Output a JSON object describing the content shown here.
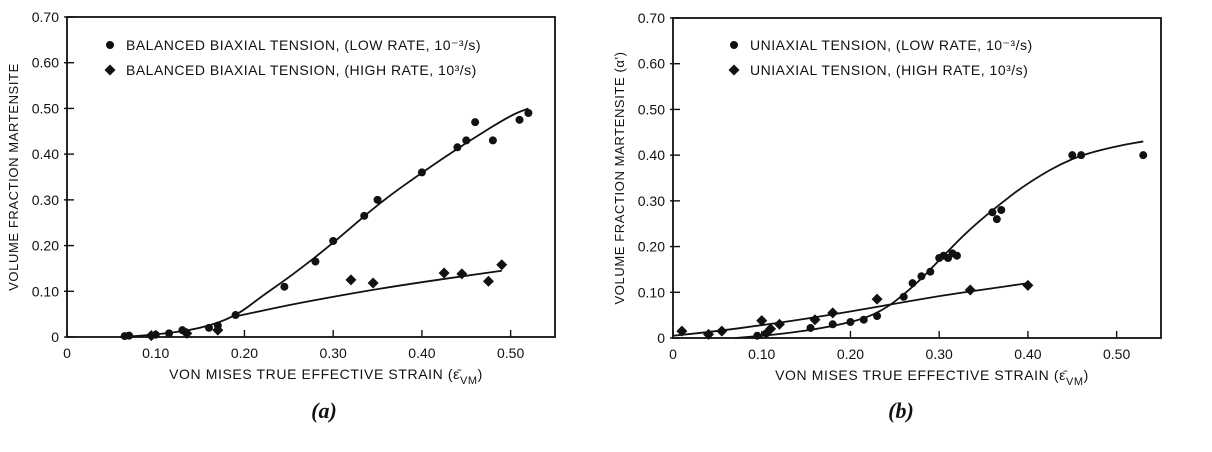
{
  "chart_data": [
    {
      "type": "scatter",
      "panel_caption": "(a)",
      "xlabel": "VON MISES TRUE EFFECTIVE STRAIN",
      "xlabel_symbol": "(ε̄",
      "xlabel_sub": "VM",
      "xlabel_close": ")",
      "ylabel": "VOLUME FRACTION MARTENSITE",
      "xlim": [
        0,
        0.55
      ],
      "ylim": [
        0,
        0.7
      ],
      "x_ticks": [
        0,
        0.1,
        0.2,
        0.3,
        0.4,
        0.5
      ],
      "x_tick_labels": [
        "0",
        "0.10",
        "0.20",
        "0.30",
        "0.40",
        "0.50"
      ],
      "y_ticks": [
        0,
        0.1,
        0.2,
        0.3,
        0.4,
        0.5,
        0.6,
        0.7
      ],
      "y_tick_labels": [
        "0",
        "0.10",
        "0.20",
        "0.30",
        "0.40",
        "0.50",
        "0.60",
        "0.70"
      ],
      "grid": false,
      "legend_position": "top-left",
      "series": [
        {
          "name": "BALANCED BIAXIAL TENSION, (LOW RATE, 10⁻³/s)",
          "marker": "circle",
          "points": [
            [
              0.065,
              0.002
            ],
            [
              0.07,
              0.003
            ],
            [
              0.1,
              0.005
            ],
            [
              0.115,
              0.008
            ],
            [
              0.13,
              0.015
            ],
            [
              0.16,
              0.02
            ],
            [
              0.17,
              0.025
            ],
            [
              0.19,
              0.048
            ],
            [
              0.245,
              0.11
            ],
            [
              0.28,
              0.165
            ],
            [
              0.3,
              0.21
            ],
            [
              0.335,
              0.265
            ],
            [
              0.35,
              0.3
            ],
            [
              0.4,
              0.36
            ],
            [
              0.44,
              0.415
            ],
            [
              0.45,
              0.43
            ],
            [
              0.46,
              0.47
            ],
            [
              0.48,
              0.43
            ],
            [
              0.51,
              0.475
            ],
            [
              0.52,
              0.49
            ]
          ],
          "fit_curve": [
            [
              0.06,
              0.0
            ],
            [
              0.1,
              0.005
            ],
            [
              0.15,
              0.018
            ],
            [
              0.19,
              0.045
            ],
            [
              0.22,
              0.09
            ],
            [
              0.25,
              0.13
            ],
            [
              0.3,
              0.205
            ],
            [
              0.35,
              0.29
            ],
            [
              0.4,
              0.36
            ],
            [
              0.45,
              0.425
            ],
            [
              0.5,
              0.485
            ],
            [
              0.52,
              0.5
            ]
          ]
        },
        {
          "name": "BALANCED BIAXIAL TENSION, (HIGH RATE, 10³/s)",
          "marker": "diamond",
          "points": [
            [
              0.095,
              0.003
            ],
            [
              0.135,
              0.008
            ],
            [
              0.17,
              0.015
            ],
            [
              0.32,
              0.125
            ],
            [
              0.345,
              0.118
            ],
            [
              0.425,
              0.14
            ],
            [
              0.445,
              0.138
            ],
            [
              0.475,
              0.122
            ],
            [
              0.49,
              0.158
            ]
          ],
          "fit_curve": [
            [
              0.19,
              0.045
            ],
            [
              0.25,
              0.07
            ],
            [
              0.3,
              0.088
            ],
            [
              0.35,
              0.105
            ],
            [
              0.4,
              0.12
            ],
            [
              0.45,
              0.134
            ],
            [
              0.49,
              0.145
            ]
          ]
        }
      ]
    },
    {
      "type": "scatter",
      "panel_caption": "(b)",
      "xlabel": "VON MISES TRUE EFFECTIVE STRAIN",
      "xlabel_symbol": "(ε̄",
      "xlabel_sub": "VM",
      "xlabel_close": ")",
      "ylabel": "VOLUME FRACTION MARTENSITE  (α')",
      "xlim": [
        0,
        0.55
      ],
      "ylim": [
        0,
        0.7
      ],
      "x_ticks": [
        0,
        0.1,
        0.2,
        0.3,
        0.4,
        0.5
      ],
      "x_tick_labels": [
        "0",
        "0.10",
        "0.20",
        "0.30",
        "0.40",
        "0.50"
      ],
      "y_ticks": [
        0,
        0.1,
        0.2,
        0.3,
        0.4,
        0.5,
        0.6,
        0.7
      ],
      "y_tick_labels": [
        "0",
        "0.10",
        "0.20",
        "0.30",
        "0.40",
        "0.50",
        "0.60",
        "0.70"
      ],
      "grid": false,
      "legend_position": "top-left",
      "series": [
        {
          "name": "UNIAXIAL TENSION, (LOW RATE, 10⁻³/s)",
          "marker": "circle",
          "points": [
            [
              0.095,
              0.005
            ],
            [
              0.105,
              0.01
            ],
            [
              0.155,
              0.022
            ],
            [
              0.18,
              0.03
            ],
            [
              0.2,
              0.035
            ],
            [
              0.215,
              0.04
            ],
            [
              0.23,
              0.048
            ],
            [
              0.26,
              0.09
            ],
            [
              0.27,
              0.12
            ],
            [
              0.28,
              0.135
            ],
            [
              0.29,
              0.145
            ],
            [
              0.3,
              0.175
            ],
            [
              0.305,
              0.18
            ],
            [
              0.31,
              0.175
            ],
            [
              0.315,
              0.185
            ],
            [
              0.32,
              0.18
            ],
            [
              0.36,
              0.275
            ],
            [
              0.365,
              0.26
            ],
            [
              0.37,
              0.28
            ],
            [
              0.45,
              0.4
            ],
            [
              0.46,
              0.4
            ],
            [
              0.53,
              0.4
            ]
          ],
          "fit_curve": [
            [
              0.07,
              0.0
            ],
            [
              0.12,
              0.008
            ],
            [
              0.18,
              0.025
            ],
            [
              0.23,
              0.05
            ],
            [
              0.27,
              0.11
            ],
            [
              0.3,
              0.17
            ],
            [
              0.33,
              0.23
            ],
            [
              0.36,
              0.28
            ],
            [
              0.4,
              0.34
            ],
            [
              0.45,
              0.395
            ],
            [
              0.5,
              0.42
            ],
            [
              0.53,
              0.43
            ]
          ]
        },
        {
          "name": "UNIAXIAL TENSION, (HIGH RATE, 10³/s)",
          "marker": "diamond",
          "points": [
            [
              0.01,
              0.015
            ],
            [
              0.04,
              0.008
            ],
            [
              0.055,
              0.015
            ],
            [
              0.1,
              0.038
            ],
            [
              0.11,
              0.02
            ],
            [
              0.12,
              0.03
            ],
            [
              0.16,
              0.04
            ],
            [
              0.18,
              0.055
            ],
            [
              0.23,
              0.085
            ],
            [
              0.335,
              0.105
            ],
            [
              0.4,
              0.115
            ]
          ],
          "fit_curve": [
            [
              0.0,
              0.005
            ],
            [
              0.05,
              0.015
            ],
            [
              0.1,
              0.028
            ],
            [
              0.15,
              0.042
            ],
            [
              0.2,
              0.058
            ],
            [
              0.25,
              0.075
            ],
            [
              0.3,
              0.092
            ],
            [
              0.35,
              0.106
            ],
            [
              0.4,
              0.12
            ]
          ]
        }
      ]
    }
  ]
}
